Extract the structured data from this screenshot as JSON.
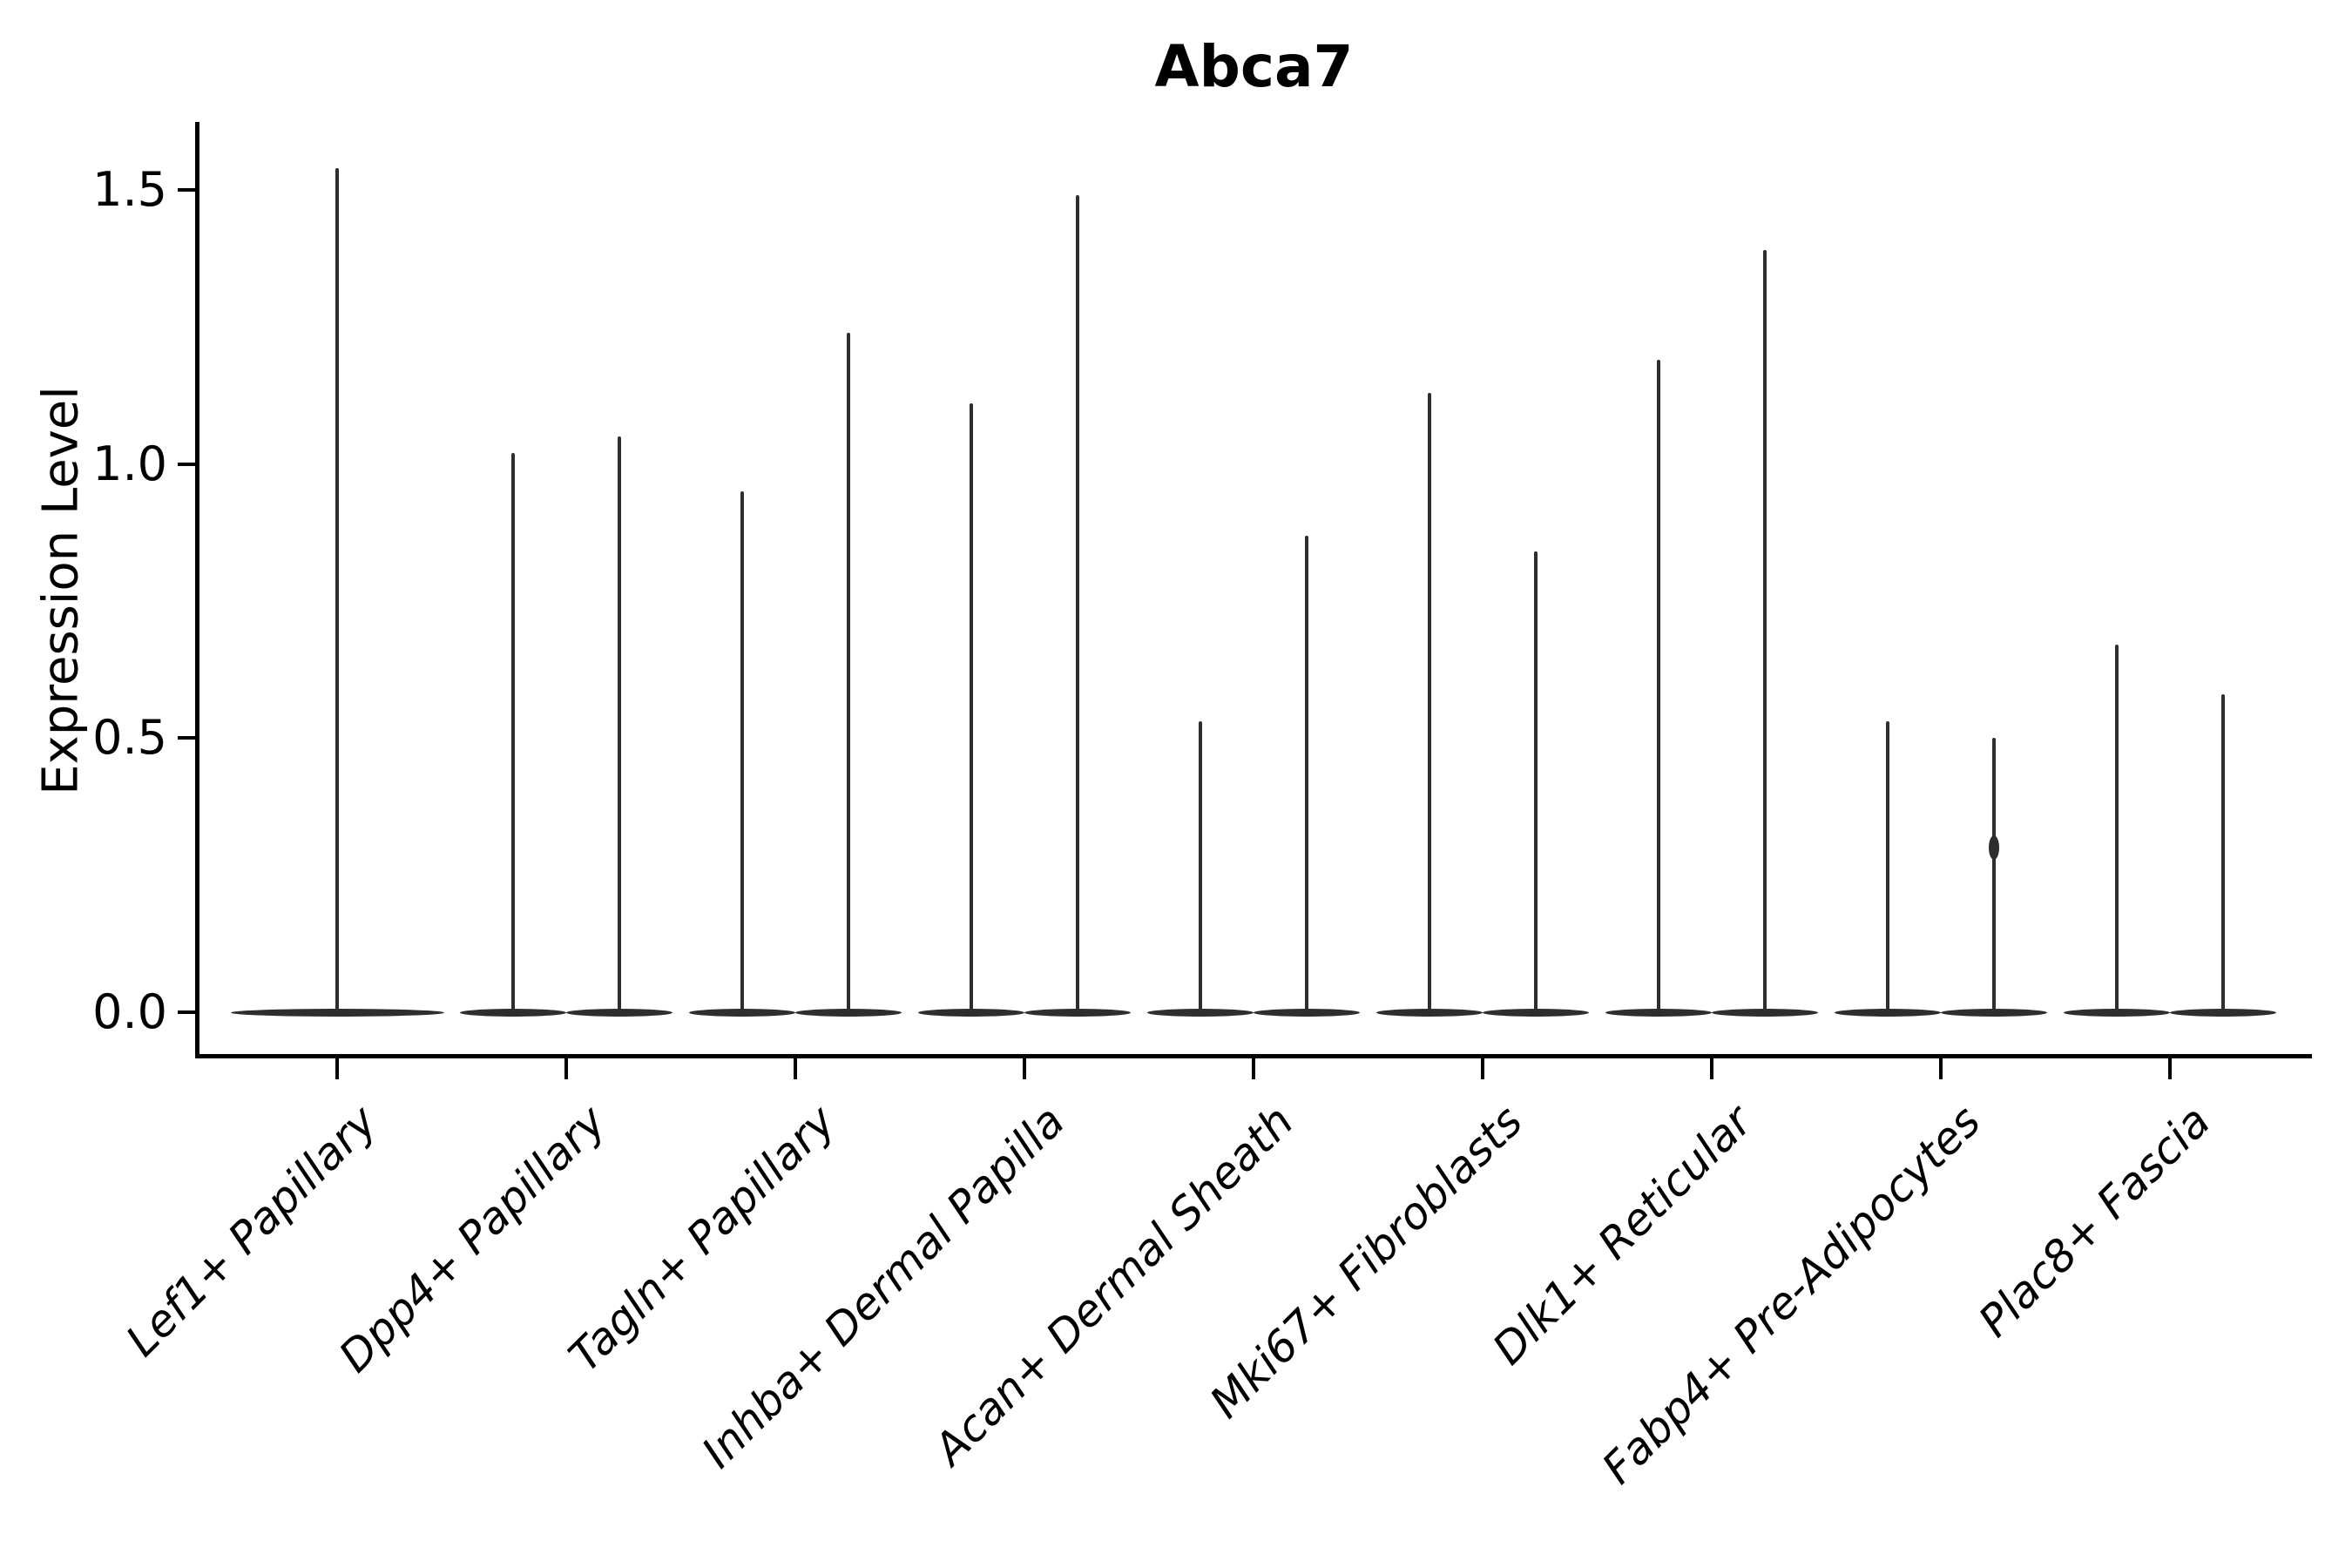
{
  "figure": {
    "background": "#ffffff"
  },
  "chart_data": {
    "type": "violin",
    "title": "Abca7",
    "ylabel": "Expression Level",
    "xlabel": "",
    "ylim": [
      -0.08,
      1.62
    ],
    "grid": false,
    "legend": null,
    "violin_color": "#2e2e2e",
    "axis_color": "#000000",
    "yticks": [
      {
        "value": 0.0,
        "label": "0.0"
      },
      {
        "value": 0.5,
        "label": "0.5"
      },
      {
        "value": 1.0,
        "label": "1.0"
      },
      {
        "value": 1.5,
        "label": "1.5"
      }
    ],
    "categories": [
      {
        "label": "Lef1+ Papillary",
        "violins": [
          {
            "group": "single",
            "max_expression": 1.54
          }
        ]
      },
      {
        "label": "Dpp4+ Papillary",
        "violins": [
          {
            "group": "left",
            "max_expression": 1.02
          },
          {
            "group": "right",
            "max_expression": 1.05
          }
        ]
      },
      {
        "label": "Tagln+ Papillary",
        "violins": [
          {
            "group": "left",
            "max_expression": 0.95
          },
          {
            "group": "right",
            "max_expression": 1.24
          }
        ]
      },
      {
        "label": "Inhba+ Dermal Papilla",
        "violins": [
          {
            "group": "left",
            "max_expression": 1.11
          },
          {
            "group": "right",
            "max_expression": 1.49
          }
        ]
      },
      {
        "label": "Acan+ Dermal Sheath",
        "violins": [
          {
            "group": "left",
            "max_expression": 0.53
          },
          {
            "group": "right",
            "max_expression": 0.87
          }
        ]
      },
      {
        "label": "Mki67+ Fibroblasts",
        "violins": [
          {
            "group": "left",
            "max_expression": 1.13
          },
          {
            "group": "right",
            "max_expression": 0.84
          }
        ]
      },
      {
        "label": "Dlk1+ Reticular",
        "violins": [
          {
            "group": "left",
            "max_expression": 1.19
          },
          {
            "group": "right",
            "max_expression": 1.39
          }
        ]
      },
      {
        "label": "Fabp4+ Pre-Adipocytes",
        "violins": [
          {
            "group": "left",
            "max_expression": 0.53
          },
          {
            "group": "right",
            "max_expression": 0.5,
            "bulge_at": 0.3
          }
        ]
      },
      {
        "label": "Plac8+ Fascia",
        "violins": [
          {
            "group": "left",
            "max_expression": 0.67
          },
          {
            "group": "right",
            "max_expression": 0.58
          }
        ]
      }
    ]
  }
}
